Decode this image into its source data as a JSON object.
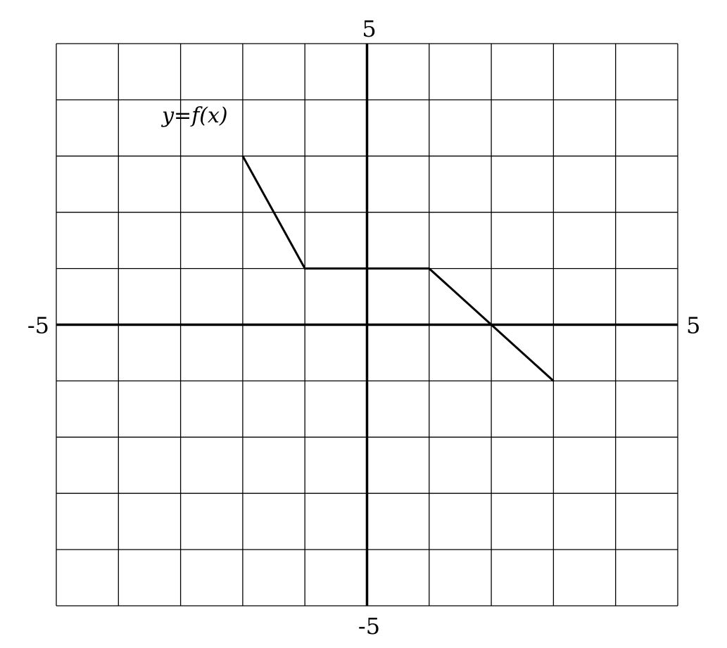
{
  "chart_data": {
    "type": "line",
    "title": "",
    "xlabel": "",
    "ylabel": "",
    "xlim": [
      -5,
      5
    ],
    "ylim": [
      -5,
      5
    ],
    "grid": true,
    "grid_step": 1,
    "series": [
      {
        "name": "y=f(x)",
        "x": [
          -2,
          -1,
          1,
          3
        ],
        "y": [
          3,
          1,
          1,
          -1
        ]
      }
    ],
    "function_label": "y=f(x)",
    "function_label_at": {
      "x": -3.3,
      "y": 3.6
    },
    "axis_tick_labels": {
      "x_min": "-5",
      "x_max": "5",
      "y_min": "-5",
      "y_max": "5"
    }
  }
}
